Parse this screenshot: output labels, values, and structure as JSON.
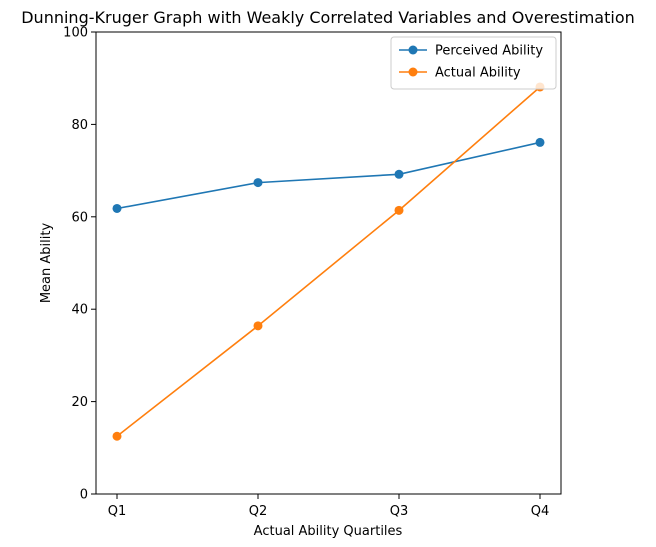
{
  "chart_data": {
    "type": "line",
    "title": "Dunning-Kruger Graph with Weakly Correlated Variables and Overestimation",
    "xlabel": "Actual Ability Quartiles",
    "ylabel": "Mean Ability",
    "categories": [
      "Q1",
      "Q2",
      "Q3",
      "Q4"
    ],
    "ylim": [
      0,
      100
    ],
    "yticks": [
      0,
      20,
      40,
      60,
      80,
      100
    ],
    "grid": false,
    "legend_position": "top-right",
    "series": [
      {
        "name": "Perceived Ability",
        "color": "#1f77b4",
        "marker": "circle",
        "values": [
          61.8,
          67.4,
          69.2,
          76.1
        ]
      },
      {
        "name": "Actual Ability",
        "color": "#ff7f0e",
        "marker": "circle",
        "values": [
          12.5,
          36.4,
          61.4,
          88.1
        ]
      }
    ]
  }
}
